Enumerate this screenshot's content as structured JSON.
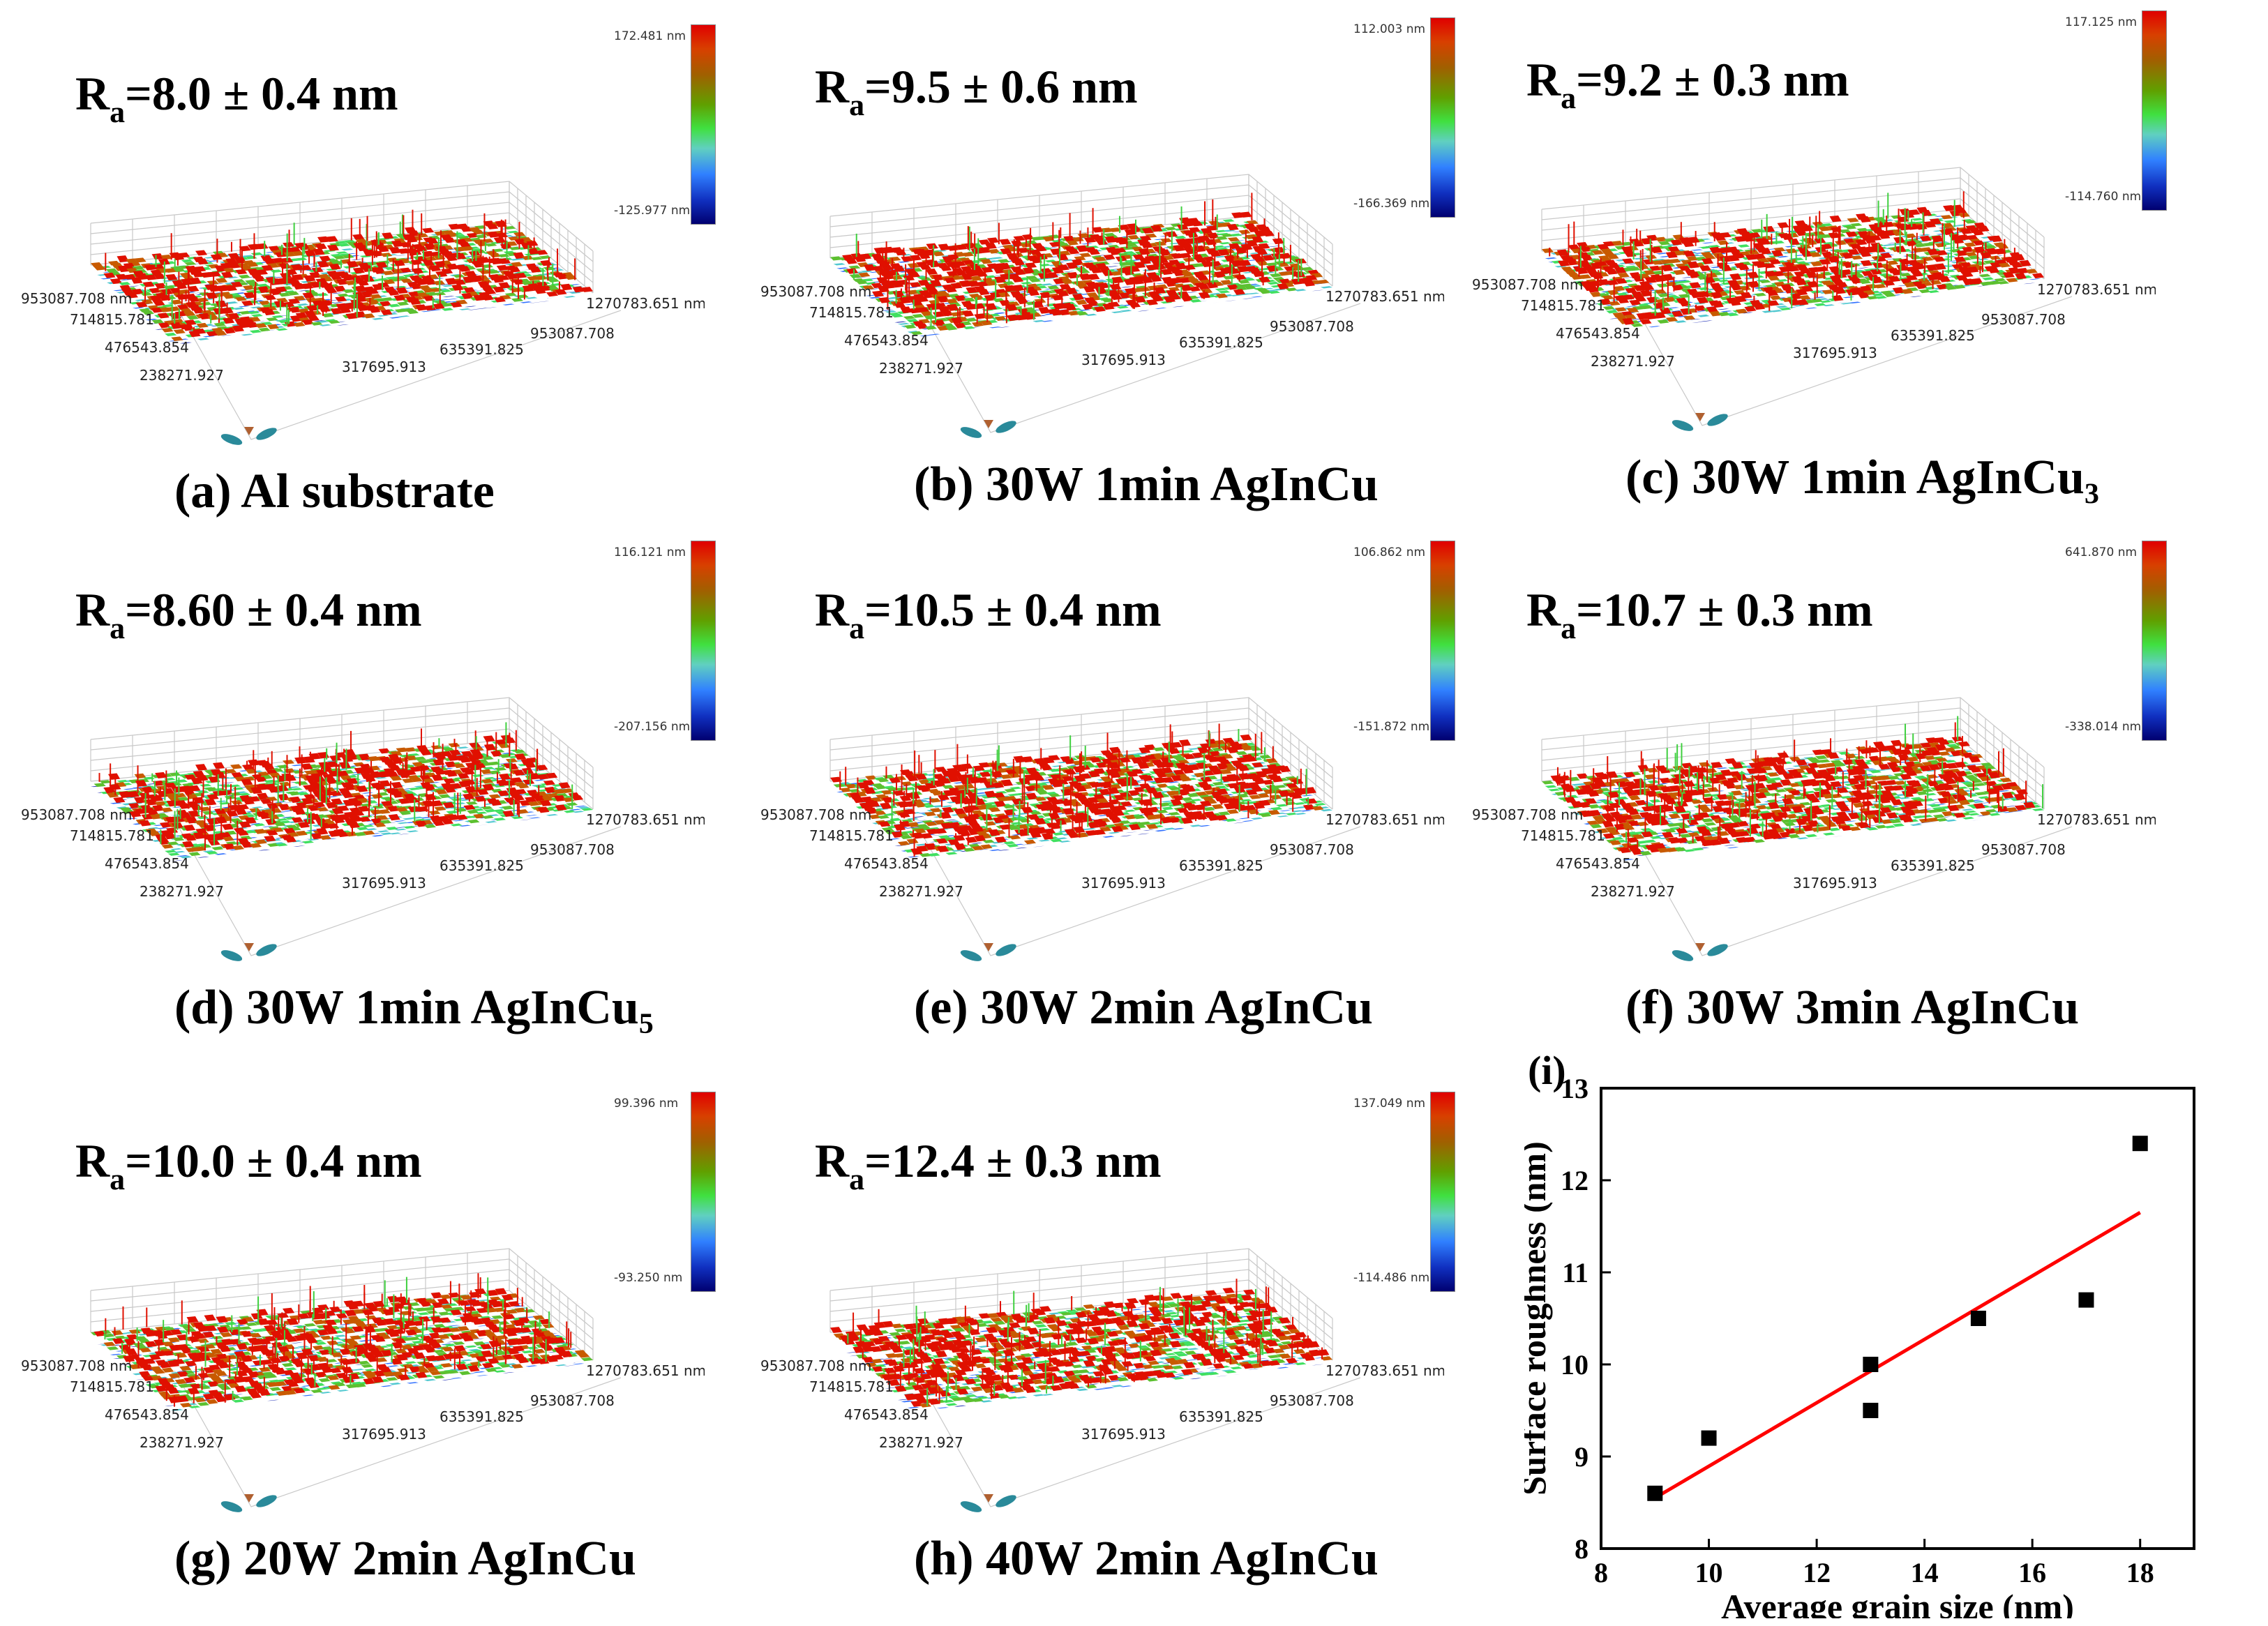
{
  "afm_panels": [
    {
      "id": "a",
      "ra": "=8.0 ± 0.4 nm",
      "caption": "(a) Al substrate",
      "cb_max": "172.481 nm",
      "cb_min": "-125.977 nm",
      "axes": {
        "y_end": "953087.708 nm",
        "y_ticks": [
          "714815.781",
          "476543.854",
          "238271.927"
        ],
        "x_end": "1270783.651 nm",
        "x_ticks": [
          "953087.708",
          "635391.825",
          "317695.913"
        ]
      }
    },
    {
      "id": "b",
      "ra": "=9.5 ± 0.6 nm",
      "caption": "(b)  30W 1min AgInCu",
      "cb_max": "112.003 nm",
      "cb_min": "-166.369 nm",
      "axes": {
        "y_end": "953087.708 nm",
        "y_ticks": [
          "714815.781",
          "476543.854",
          "238271.927"
        ],
        "x_end": "1270783.651 nm",
        "x_ticks": [
          "953087.708",
          "635391.825",
          "317695.913"
        ]
      }
    },
    {
      "id": "c",
      "ra": "=9.2 ± 0.3 nm",
      "caption": "(c)  30W 1min AgInCu₃",
      "cb_max": "117.125 nm",
      "cb_min": "-114.760 nm",
      "axes": {
        "y_end": "953087.708 nm",
        "y_ticks": [
          "714815.781",
          "476543.854",
          "238271.927"
        ],
        "x_end": "1270783.651 nm",
        "x_ticks": [
          "953087.708",
          "635391.825",
          "317695.913"
        ]
      }
    },
    {
      "id": "d",
      "ra": "=8.60 ± 0.4 nm",
      "caption": "(d)  30W 1min AgInCu₅",
      "cb_max": "116.121 nm",
      "cb_min": "-207.156 nm",
      "axes": {
        "y_end": "953087.708 nm",
        "y_ticks": [
          "714815.781",
          "476543.854",
          "238271.927"
        ],
        "x_end": "1270783.651 nm",
        "x_ticks": [
          "953087.708",
          "635391.825",
          "317695.913"
        ]
      }
    },
    {
      "id": "e",
      "ra": "=10.5 ± 0.4 nm",
      "caption": "(e)  30W 2min AgInCu",
      "cb_max": "106.862 nm",
      "cb_min": "-151.872 nm",
      "axes": {
        "y_end": "953087.708 nm",
        "y_ticks": [
          "714815.781",
          "476543.854",
          "238271.927"
        ],
        "x_end": "1270783.651 nm",
        "x_ticks": [
          "953087.708",
          "635391.825",
          "317695.913"
        ]
      }
    },
    {
      "id": "f",
      "ra": "=10.7 ± 0.3 nm",
      "caption": "(f)  30W 3min AgInCu",
      "cb_max": "641.870 nm",
      "cb_min": "-338.014 nm",
      "axes": {
        "y_end": "953087.708 nm",
        "y_ticks": [
          "714815.781",
          "476543.854",
          "238271.927"
        ],
        "x_end": "1270783.651 nm",
        "x_ticks": [
          "953087.708",
          "635391.825",
          "317695.913"
        ]
      }
    },
    {
      "id": "g",
      "ra": "=10.0 ± 0.4 nm",
      "caption": "(g)  20W 2min AgInCu",
      "cb_max": "99.396 nm",
      "cb_min": "-93.250 nm",
      "axes": {
        "y_end": "953087.708 nm",
        "y_ticks": [
          "714815.781",
          "476543.854",
          "238271.927"
        ],
        "x_end": "1270783.651 nm",
        "x_ticks": [
          "953087.708",
          "635391.825",
          "317695.913"
        ]
      }
    },
    {
      "id": "h",
      "ra": "=12.4 ± 0.3 nm",
      "caption": "(h)  40W 2min AgInCu",
      "cb_max": "137.049 nm",
      "cb_min": "-114.486 nm",
      "axes": {
        "y_end": "953087.708 nm",
        "y_ticks": [
          "714815.781",
          "476543.854",
          "238271.927"
        ],
        "x_end": "1270783.651 nm",
        "x_ticks": [
          "953087.708",
          "635391.825",
          "317695.913"
        ]
      }
    }
  ],
  "ra_symbol": "R",
  "ra_sub": "a",
  "colors": {
    "surface_high": "#e00000",
    "surface_mid": "#40e040",
    "surface_low": "#1030c0",
    "fit_line": "#ff0000",
    "marker": "#000000"
  },
  "chart_data": {
    "type": "scatter",
    "panel_label": "(i)",
    "xlabel": "Average grain size (nm)",
    "ylabel": "Surface roughness (nm)",
    "xlim": [
      8,
      19
    ],
    "ylim": [
      8,
      13
    ],
    "x_ticks": [
      8,
      10,
      12,
      14,
      16,
      18
    ],
    "y_ticks": [
      8,
      9,
      10,
      11,
      12,
      13
    ],
    "points": [
      {
        "x": 9,
        "y": 8.6
      },
      {
        "x": 10,
        "y": 9.2
      },
      {
        "x": 13,
        "y": 10.0
      },
      {
        "x": 13,
        "y": 9.5
      },
      {
        "x": 15,
        "y": 10.5
      },
      {
        "x": 17,
        "y": 10.7
      },
      {
        "x": 18,
        "y": 12.4
      }
    ],
    "fit_line": {
      "x": [
        9,
        18
      ],
      "y": [
        8.55,
        11.65
      ]
    },
    "grid": false
  }
}
